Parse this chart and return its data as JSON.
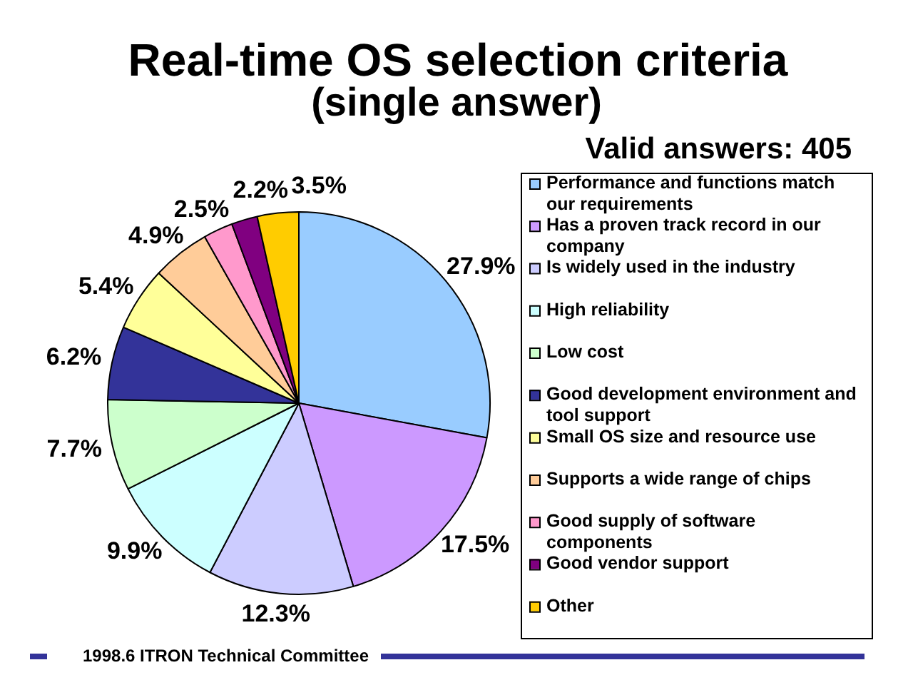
{
  "chart_data": {
    "type": "pie",
    "title": "Real-time OS selection criteria",
    "subtitle": "(single answer)",
    "legend_title": "Valid answers: 405",
    "categories": [
      "Performance and functions match our requirements",
      "Has a proven track record in our company",
      "Is widely used in the industry",
      "High reliability",
      "Low cost",
      "Good development environment and tool support",
      "Small OS size and resource use",
      "Supports a wide range of chips",
      "Good supply of software components",
      "Good vendor support",
      "Other"
    ],
    "values": [
      27.9,
      17.5,
      12.3,
      9.9,
      7.7,
      6.2,
      5.4,
      4.9,
      2.5,
      2.2,
      3.5
    ],
    "colors": [
      "#99ccff",
      "#cc99ff",
      "#ccccff",
      "#ccffff",
      "#ccffcc",
      "#333399",
      "#ffff99",
      "#ffcc99",
      "#ff99cc",
      "#800080",
      "#ffcc00"
    ],
    "value_labels": [
      "27.9%",
      "17.5%",
      "12.3%",
      "9.9%",
      "7.7%",
      "6.2%",
      "5.4%",
      "4.9%",
      "2.5%",
      "2.2%",
      "3.5%"
    ],
    "legend": "right",
    "annotations": [
      "1998.6 ITRON Technical Committee"
    ]
  }
}
